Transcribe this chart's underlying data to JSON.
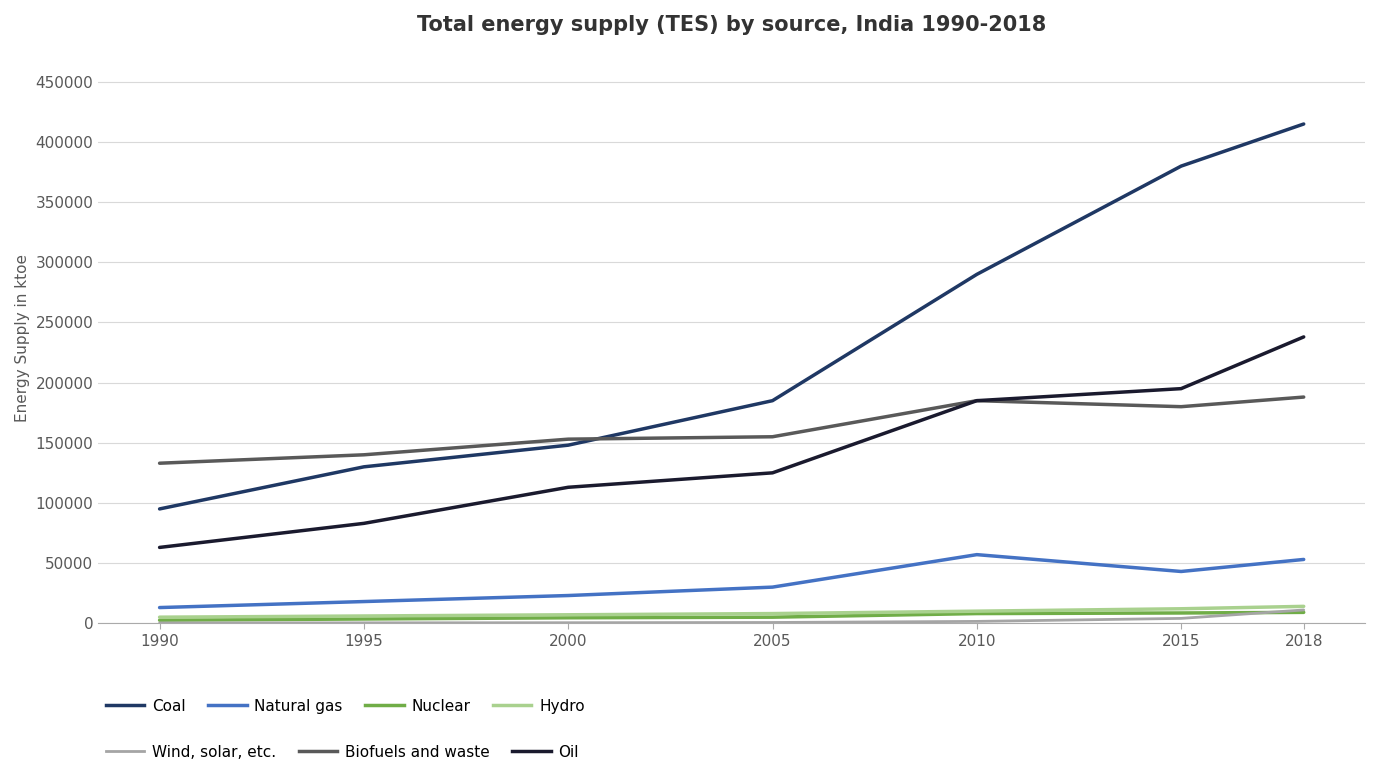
{
  "title": "Total energy supply (TES) by source, India 1990-2018",
  "ylabel": "Energy Supply in ktoe",
  "years": [
    1990,
    1995,
    2000,
    2005,
    2010,
    2015,
    2018
  ],
  "series": {
    "Coal": {
      "values": [
        95000,
        130000,
        148000,
        185000,
        290000,
        380000,
        415000
      ],
      "color": "#1f3864",
      "linewidth": 2.5
    },
    "Natural gas": {
      "values": [
        13000,
        18000,
        23000,
        30000,
        57000,
        43000,
        53000
      ],
      "color": "#4472c4",
      "linewidth": 2.5
    },
    "Nuclear": {
      "values": [
        2500,
        3500,
        4500,
        5000,
        8000,
        8500,
        9000
      ],
      "color": "#70ad47",
      "linewidth": 2.5
    },
    "Hydro": {
      "values": [
        5000,
        6000,
        7000,
        8000,
        10000,
        12000,
        14000
      ],
      "color": "#a9d18e",
      "linewidth": 2.5
    },
    "Wind, solar, etc.": {
      "values": [
        200,
        300,
        400,
        600,
        1500,
        4000,
        11000
      ],
      "color": "#a5a5a5",
      "linewidth": 2.0
    },
    "Biofuels and waste": {
      "values": [
        133000,
        140000,
        153000,
        155000,
        185000,
        180000,
        188000
      ],
      "color": "#595959",
      "linewidth": 2.5
    },
    "Oil": {
      "values": [
        63000,
        83000,
        113000,
        125000,
        185000,
        195000,
        238000
      ],
      "color": "#1a1a2e",
      "linewidth": 2.5
    }
  },
  "ylim": [
    0,
    475000
  ],
  "yticks": [
    0,
    50000,
    100000,
    150000,
    200000,
    250000,
    300000,
    350000,
    400000,
    450000
  ],
  "xticks": [
    1990,
    1995,
    2000,
    2005,
    2010,
    2015,
    2018
  ],
  "xlim": [
    1988.5,
    2019.5
  ],
  "background_color": "#ffffff",
  "grid_color": "#d9d9d9",
  "title_fontsize": 15,
  "axis_label_fontsize": 11,
  "tick_fontsize": 11,
  "legend_fontsize": 11,
  "legend_row1": [
    "Coal",
    "Natural gas",
    "Nuclear",
    "Hydro"
  ],
  "legend_row2": [
    "Wind, solar, etc.",
    "Biofuels and waste",
    "Oil"
  ]
}
